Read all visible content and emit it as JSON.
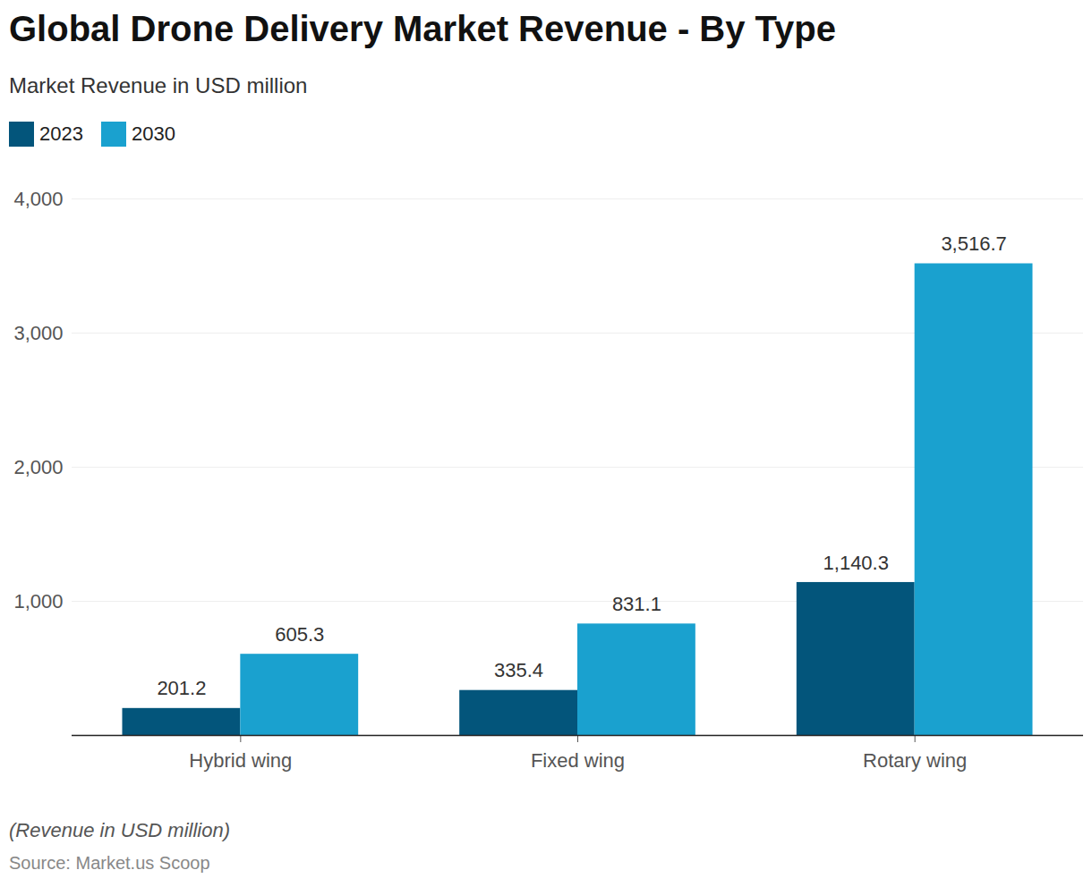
{
  "chart_data": {
    "type": "bar",
    "title": "Global Drone Delivery Market Revenue - By Type",
    "subtitle": "Market Revenue in USD million",
    "caption": "(Revenue in USD million)",
    "source": "Source: Market.us Scoop",
    "categories": [
      "Hybrid wing",
      "Fixed wing",
      "Rotary wing"
    ],
    "series": [
      {
        "name": "2023",
        "color": "#03557b",
        "values": [
          201.2,
          335.4,
          1140.3
        ],
        "value_labels": [
          "201.2",
          "335.4",
          "1,140.3"
        ]
      },
      {
        "name": "2030",
        "color": "#1aa1cf",
        "values": [
          605.3,
          831.1,
          3516.7
        ],
        "value_labels": [
          "605.3",
          "831.1",
          "3,516.7"
        ]
      }
    ],
    "ylim": [
      0,
      4000
    ],
    "yticks": [
      {
        "value": 1000,
        "label": "1,000"
      },
      {
        "value": 2000,
        "label": "2,000"
      },
      {
        "value": 3000,
        "label": "3,000"
      },
      {
        "value": 4000,
        "label": "4,000"
      }
    ],
    "grid": true,
    "legend": "top-left",
    "data_labels": true
  }
}
